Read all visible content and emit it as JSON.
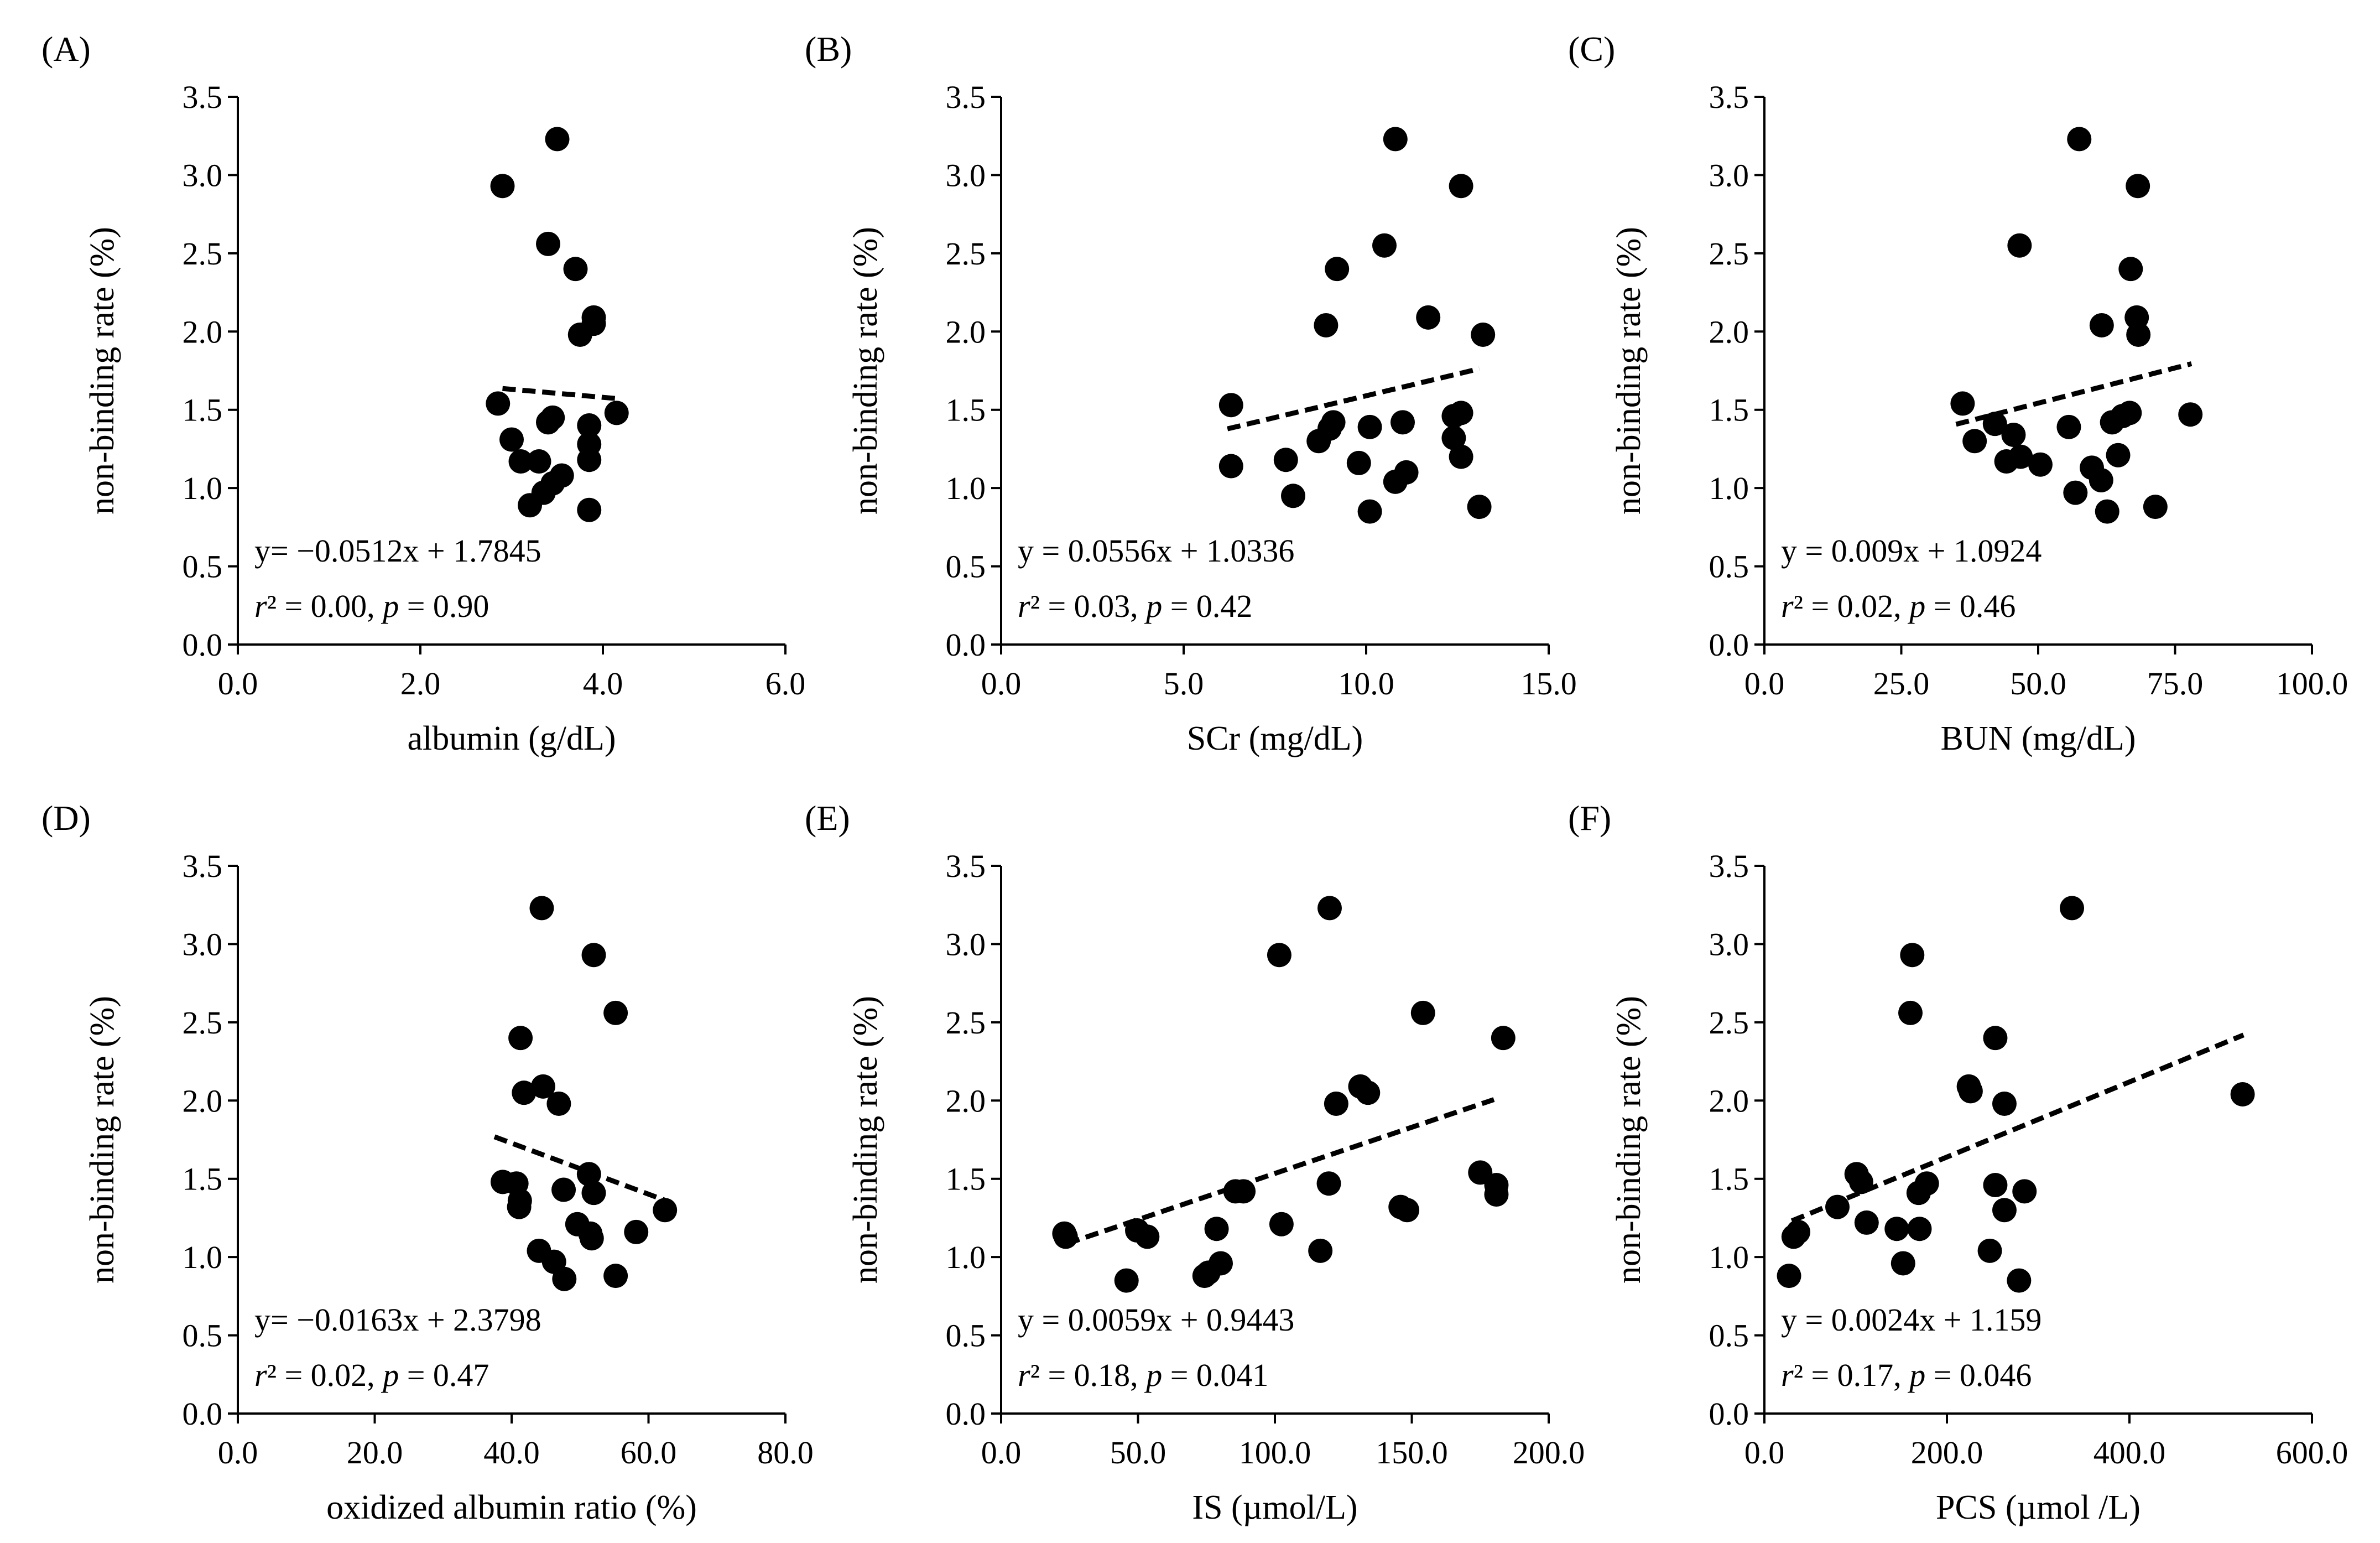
{
  "figure": {
    "ylabel_common": "non-binding rate (%)"
  },
  "chart_data": [
    {
      "type": "scatter",
      "panel": "(A)",
      "xlabel": "albumin (g/dL)",
      "ylabel": "non-binding rate (%)",
      "xlim": [
        0,
        6
      ],
      "ylim": [
        0,
        3.5
      ],
      "xticks": [
        "0.0",
        "2.0",
        "4.0",
        "6.0"
      ],
      "yticks": [
        "0.0",
        "0.5",
        "1.0",
        "1.5",
        "2.0",
        "2.5",
        "3.0",
        "3.5"
      ],
      "equation": "y= −0.0512x  + 1.7845",
      "stats": {
        "r2": "r² = 0.00, ",
        "p": "p = 0.90"
      },
      "trend": {
        "slope": -0.0512,
        "intercept": 1.7845,
        "x_range": [
          2.9,
          4.2
        ]
      },
      "points": [
        [
          2.9,
          2.93
        ],
        [
          3.5,
          3.23
        ],
        [
          3.4,
          2.56
        ],
        [
          3.7,
          2.4
        ],
        [
          3.9,
          2.09
        ],
        [
          3.9,
          2.05
        ],
        [
          3.75,
          1.98
        ],
        [
          2.85,
          1.54
        ],
        [
          3.4,
          1.42
        ],
        [
          3.45,
          1.45
        ],
        [
          4.15,
          1.48
        ],
        [
          3.85,
          1.4
        ],
        [
          3.0,
          1.31
        ],
        [
          3.85,
          1.28
        ],
        [
          3.1,
          1.17
        ],
        [
          3.3,
          1.17
        ],
        [
          3.85,
          1.18
        ],
        [
          3.55,
          1.08
        ],
        [
          3.45,
          1.03
        ],
        [
          3.35,
          0.97
        ],
        [
          3.2,
          0.89
        ],
        [
          3.85,
          0.86
        ]
      ]
    },
    {
      "type": "scatter",
      "panel": "(B)",
      "xlabel": "SCr (mg/dL)",
      "ylabel": "non-binding rate (%)",
      "xlim": [
        0,
        15
      ],
      "ylim": [
        0,
        3.5
      ],
      "xticks": [
        "0.0",
        "5.0",
        "10.0",
        "15.0"
      ],
      "yticks": [
        "0.0",
        "0.5",
        "1.0",
        "1.5",
        "2.0",
        "2.5",
        "3.0",
        "3.5"
      ],
      "equation": "y = 0.0556x  + 1.0336",
      "stats": {
        "r2": "r² = 0.03, ",
        "p": "p = 0.42"
      },
      "trend": {
        "slope": 0.0556,
        "intercept": 1.0336,
        "x_range": [
          6.2,
          13.1
        ]
      },
      "points": [
        [
          10.8,
          3.23
        ],
        [
          12.6,
          2.93
        ],
        [
          10.5,
          2.55
        ],
        [
          9.2,
          2.4
        ],
        [
          11.7,
          2.09
        ],
        [
          8.9,
          2.04
        ],
        [
          13.2,
          1.98
        ],
        [
          6.3,
          1.53
        ],
        [
          12.6,
          1.48
        ],
        [
          12.4,
          1.46
        ],
        [
          9.1,
          1.42
        ],
        [
          11.0,
          1.42
        ],
        [
          10.1,
          1.39
        ],
        [
          9.0,
          1.38
        ],
        [
          8.7,
          1.3
        ],
        [
          12.4,
          1.32
        ],
        [
          12.6,
          1.2
        ],
        [
          7.8,
          1.18
        ],
        [
          9.8,
          1.16
        ],
        [
          6.3,
          1.14
        ],
        [
          11.1,
          1.1
        ],
        [
          10.8,
          1.04
        ],
        [
          8.0,
          0.95
        ],
        [
          10.1,
          0.85
        ],
        [
          13.1,
          0.88
        ]
      ]
    },
    {
      "type": "scatter",
      "panel": "(C)",
      "xlabel": "BUN (mg/dL)",
      "ylabel": "non-binding rate (%)",
      "xlim": [
        0,
        100
      ],
      "ylim": [
        0,
        3.5
      ],
      "xticks": [
        "0.0",
        "25.0",
        "50.0",
        "75.0",
        "100.0"
      ],
      "yticks": [
        "0.0",
        "0.5",
        "1.0",
        "1.5",
        "2.0",
        "2.5",
        "3.0",
        "3.5"
      ],
      "equation": "y = 0.009x  + 1.0924",
      "stats": {
        "r2": "r² = 0.02, ",
        "p": "p = 0.46"
      },
      "trend": {
        "slope": 0.009,
        "intercept": 1.0924,
        "x_range": [
          35,
          78
        ]
      },
      "points": [
        [
          57.5,
          3.23
        ],
        [
          68.2,
          2.93
        ],
        [
          46.6,
          2.55
        ],
        [
          66.9,
          2.4
        ],
        [
          68.0,
          2.09
        ],
        [
          61.6,
          2.04
        ],
        [
          68.3,
          1.98
        ],
        [
          36.2,
          1.54
        ],
        [
          77.8,
          1.47
        ],
        [
          66.7,
          1.48
        ],
        [
          55.6,
          1.39
        ],
        [
          63.5,
          1.42
        ],
        [
          65.4,
          1.46
        ],
        [
          42.1,
          1.41
        ],
        [
          45.5,
          1.34
        ],
        [
          38.4,
          1.3
        ],
        [
          46.8,
          1.2
        ],
        [
          44.2,
          1.17
        ],
        [
          50.4,
          1.15
        ],
        [
          59.8,
          1.13
        ],
        [
          64.6,
          1.21
        ],
        [
          61.5,
          1.05
        ],
        [
          56.8,
          0.97
        ],
        [
          62.6,
          0.85
        ],
        [
          71.4,
          0.88
        ]
      ]
    },
    {
      "type": "scatter",
      "panel": "(D)",
      "xlabel": "oxidized albumin ratio (%)",
      "ylabel": "non-binding rate (%)",
      "xlim": [
        0,
        80
      ],
      "ylim": [
        0,
        3.5
      ],
      "xticks": [
        "0.0",
        "20.0",
        "40.0",
        "60.0",
        "80.0"
      ],
      "yticks": [
        "0.0",
        "0.5",
        "1.0",
        "1.5",
        "2.0",
        "2.5",
        "3.0",
        "3.5"
      ],
      "equation": "y= −0.0163x  + 2.3798",
      "stats": {
        "r2": "r² = 0.02, ",
        "p": "p = 0.47"
      },
      "trend": {
        "slope": -0.0163,
        "intercept": 2.3798,
        "x_range": [
          37.5,
          62.5
        ]
      },
      "points": [
        [
          44.4,
          3.23
        ],
        [
          52.0,
          2.93
        ],
        [
          55.2,
          2.56
        ],
        [
          41.3,
          2.4
        ],
        [
          44.6,
          2.09
        ],
        [
          41.8,
          2.05
        ],
        [
          46.9,
          1.98
        ],
        [
          51.3,
          1.53
        ],
        [
          38.7,
          1.48
        ],
        [
          40.7,
          1.47
        ],
        [
          47.6,
          1.43
        ],
        [
          52.0,
          1.41
        ],
        [
          62.4,
          1.3
        ],
        [
          41.2,
          1.36
        ],
        [
          41.1,
          1.32
        ],
        [
          49.6,
          1.21
        ],
        [
          51.5,
          1.15
        ],
        [
          51.7,
          1.12
        ],
        [
          58.2,
          1.16
        ],
        [
          44.0,
          1.04
        ],
        [
          46.2,
          0.97
        ],
        [
          47.7,
          0.86
        ],
        [
          55.2,
          0.88
        ]
      ]
    },
    {
      "type": "scatter",
      "panel": "(E)",
      "xlabel": "IS (µmol/L)",
      "ylabel": "non-binding rate (%)",
      "xlim": [
        0,
        200
      ],
      "ylim": [
        0,
        3.5
      ],
      "xticks": [
        "0.0",
        "50.0",
        "100.0",
        "150.0",
        "200.0"
      ],
      "yticks": [
        "0.0",
        "0.5",
        "1.0",
        "1.5",
        "2.0",
        "2.5",
        "3.0",
        "3.5"
      ],
      "equation": "y = 0.0059x  + 0.9443",
      "stats": {
        "r2": "r² = 0.18, ",
        "p": "p = 0.041"
      },
      "trend": {
        "slope": 0.0059,
        "intercept": 0.9443,
        "x_range": [
          24,
          180
        ]
      },
      "points": [
        [
          120.0,
          3.23
        ],
        [
          101.6,
          2.93
        ],
        [
          154.1,
          2.56
        ],
        [
          183.4,
          2.4
        ],
        [
          131.2,
          2.09
        ],
        [
          134.0,
          2.05
        ],
        [
          122.4,
          1.98
        ],
        [
          175.0,
          1.54
        ],
        [
          180.9,
          1.46
        ],
        [
          180.9,
          1.4
        ],
        [
          119.7,
          1.47
        ],
        [
          85.6,
          1.42
        ],
        [
          88.5,
          1.42
        ],
        [
          145.9,
          1.32
        ],
        [
          148.3,
          1.3
        ],
        [
          102.4,
          1.21
        ],
        [
          78.7,
          1.18
        ],
        [
          23.1,
          1.15
        ],
        [
          23.6,
          1.13
        ],
        [
          49.7,
          1.17
        ],
        [
          53.4,
          1.13
        ],
        [
          116.6,
          1.04
        ],
        [
          80.2,
          0.96
        ],
        [
          74.3,
          0.88
        ],
        [
          45.8,
          0.85
        ],
        [
          75.7,
          0.9
        ]
      ]
    },
    {
      "type": "scatter",
      "panel": "(F)",
      "xlabel": "PCS (µmol /L)",
      "ylabel": "non-binding rate (%)",
      "xlim": [
        0,
        600
      ],
      "ylim": [
        0,
        3.5
      ],
      "xticks": [
        "0.0",
        "200.0",
        "400.0",
        "600.0"
      ],
      "yticks": [
        "0.0",
        "0.5",
        "1.0",
        "1.5",
        "2.0",
        "2.5",
        "3.0",
        "3.5"
      ],
      "equation": "y = 0.0024x  + 1.159",
      "stats": {
        "r2": "r² = 0.17, ",
        "p": "p = 0.046"
      },
      "trend": {
        "slope": 0.0024,
        "intercept": 1.159,
        "x_range": [
          30,
          525
        ]
      },
      "points": [
        [
          337,
          3.23
        ],
        [
          162,
          2.93
        ],
        [
          160,
          2.56
        ],
        [
          253,
          2.4
        ],
        [
          224,
          2.09
        ],
        [
          226,
          2.06
        ],
        [
          524,
          2.04
        ],
        [
          263,
          1.98
        ],
        [
          101,
          1.53
        ],
        [
          106,
          1.48
        ],
        [
          178,
          1.47
        ],
        [
          253,
          1.46
        ],
        [
          169,
          1.41
        ],
        [
          285,
          1.42
        ],
        [
          80,
          1.32
        ],
        [
          263,
          1.3
        ],
        [
          112,
          1.22
        ],
        [
          145,
          1.18
        ],
        [
          170,
          1.18
        ],
        [
          37,
          1.16
        ],
        [
          32,
          1.13
        ],
        [
          247,
          1.04
        ],
        [
          152,
          0.96
        ],
        [
          27,
          0.88
        ],
        [
          279,
          0.85
        ]
      ]
    }
  ]
}
